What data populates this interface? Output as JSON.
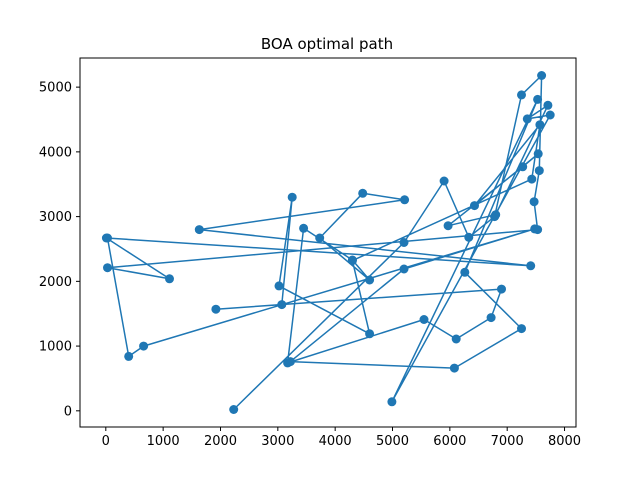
{
  "chart_data": {
    "type": "line",
    "title": "BOA optimal path",
    "xlabel": "",
    "ylabel": "",
    "xlim": [
      -450,
      8200
    ],
    "ylim": [
      -250,
      5450
    ],
    "xticks": [
      0,
      1000,
      2000,
      3000,
      4000,
      5000,
      6000,
      7000,
      8000
    ],
    "yticks": [
      0,
      1000,
      2000,
      3000,
      4000,
      5000
    ],
    "grid": false,
    "legend": "none",
    "series": [
      {
        "color": "#1f77b4",
        "marker": "circle",
        "points": [
          [
            2230,
            20
          ],
          [
            5200,
            2600
          ],
          [
            5900,
            3550
          ],
          [
            6330,
            2680
          ],
          [
            6780,
            3000
          ],
          [
            7250,
            4880
          ],
          [
            7600,
            5180
          ],
          [
            7560,
            3710
          ],
          [
            7470,
            3230
          ],
          [
            7530,
            2800
          ],
          [
            30,
            2210
          ],
          [
            1110,
            2040
          ],
          [
            10,
            2670
          ],
          [
            7410,
            2240
          ],
          [
            1630,
            2800
          ],
          [
            5210,
            3260
          ],
          [
            4480,
            3360
          ],
          [
            3730,
            2670
          ],
          [
            4600,
            2020
          ],
          [
            4300,
            2330
          ],
          [
            3450,
            2820
          ],
          [
            3170,
            740
          ],
          [
            5550,
            1410
          ],
          [
            6110,
            1110
          ],
          [
            6720,
            1440
          ],
          [
            6900,
            1880
          ],
          [
            1920,
            1570
          ],
          [
            3070,
            1640
          ],
          [
            3250,
            3300
          ],
          [
            3020,
            1930
          ],
          [
            4600,
            1190
          ],
          [
            4300,
            2320
          ],
          [
            7430,
            3580
          ],
          [
            7570,
            4420
          ],
          [
            6430,
            3170
          ],
          [
            7540,
            3970
          ],
          [
            7270,
            3770
          ],
          [
            5970,
            2860
          ],
          [
            6800,
            3030
          ],
          [
            7710,
            4720
          ],
          [
            7350,
            4510
          ],
          [
            7750,
            4570
          ],
          [
            4990,
            140
          ],
          [
            7530,
            4810
          ],
          [
            6260,
            2140
          ],
          [
            7250,
            1270
          ],
          [
            6080,
            660
          ],
          [
            3220,
            760
          ],
          [
            5200,
            2190
          ],
          [
            7480,
            2810
          ],
          [
            660,
            1000
          ],
          [
            400,
            840
          ],
          [
            30,
            2670
          ]
        ]
      }
    ]
  }
}
